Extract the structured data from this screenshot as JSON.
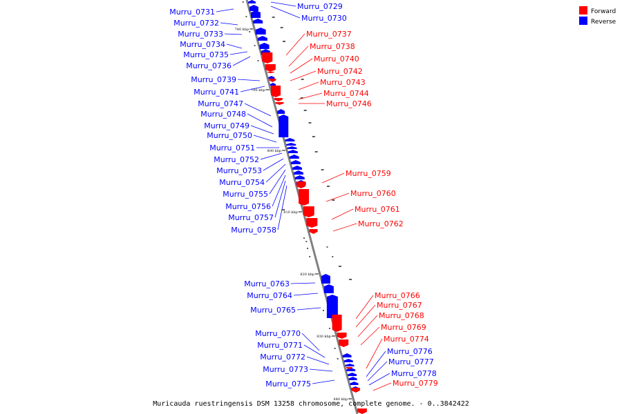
{
  "colors": {
    "forward": "#ff0000",
    "reverse": "#0000ff",
    "backbone": "#808080"
  },
  "legend": {
    "forward": "Forward",
    "reverse": "Reverse"
  },
  "footer": "Muricauda ruestringensis DSM 13258 chromosome, complete genome. - 0..3842422",
  "ticks": [
    "780 kbp",
    "790 kbp",
    "800 kbp",
    "810 kbp",
    "820 kbp",
    "830 kbp",
    "840 kbp"
  ],
  "genes_reverse_left": [
    "Murru_0731",
    "Murru_0732",
    "Murru_0733",
    "Murru_0734",
    "Murru_0735",
    "Murru_0736",
    "Murru_0739",
    "Murru_0741",
    "Murru_0747",
    "Murru_0748",
    "Murru_0749",
    "Murru_0750",
    "Murru_0751",
    "Murru_0752",
    "Murru_0753",
    "Murru_0754",
    "Murru_0755",
    "Murru_0756",
    "Murru_0757",
    "Murru_0758",
    "Murru_0763",
    "Murru_0764",
    "Murru_0765",
    "Murru_0770",
    "Murru_0771",
    "Murru_0772",
    "Murru_0773",
    "Murru_0775"
  ],
  "genes_reverse_right": [
    "Murru_0729",
    "Murru_0730",
    "Murru_0776",
    "Murru_0777",
    "Murru_0778"
  ],
  "genes_forward": [
    "Murru_0737",
    "Murru_0738",
    "Murru_0740",
    "Murru_0742",
    "Murru_0743",
    "Murru_0744",
    "Murru_0746",
    "Murru_0759",
    "Murru_0760",
    "Murru_0761",
    "Murru_0762",
    "Murru_0766",
    "Murru_0767",
    "Murru_0768",
    "Murru_0769",
    "Murru_0774",
    "Murru_0779"
  ]
}
